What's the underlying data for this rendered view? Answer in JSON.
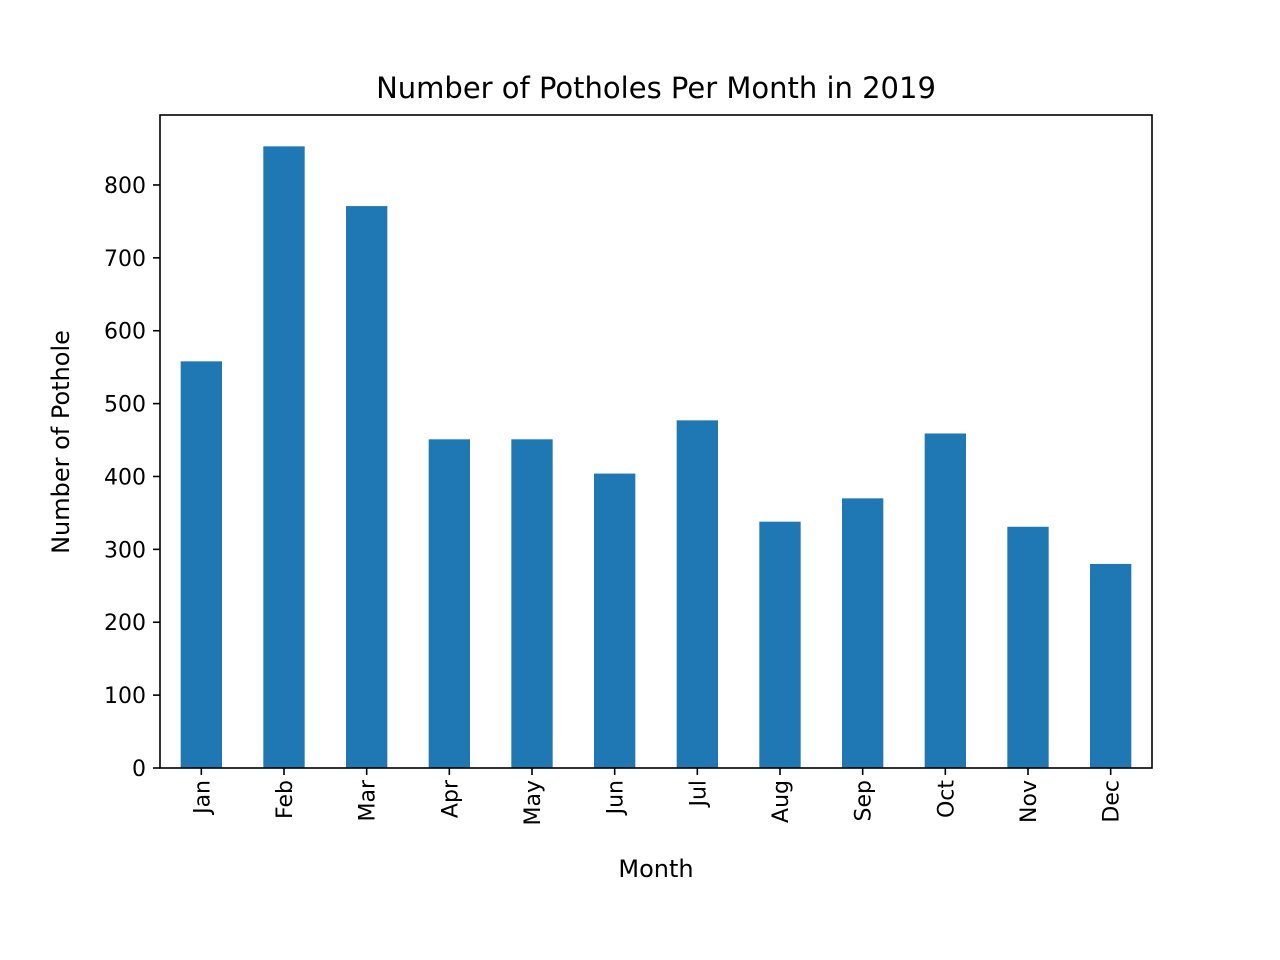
{
  "chart_data": {
    "type": "bar",
    "title": "Number of Potholes Per Month in 2019",
    "xlabel": "Month",
    "ylabel": "Number of Pothole",
    "categories": [
      "Jan",
      "Feb",
      "Mar",
      "Apr",
      "May",
      "Jun",
      "Jul",
      "Aug",
      "Sep",
      "Oct",
      "Nov",
      "Dec"
    ],
    "values": [
      558,
      853,
      771,
      451,
      451,
      404,
      477,
      338,
      370,
      459,
      331,
      280
    ],
    "ylim": [
      0,
      896
    ],
    "yticks": [
      0,
      100,
      200,
      300,
      400,
      500,
      600,
      700,
      800
    ],
    "bar_color": "#1f77b4",
    "grid": false,
    "legend": "none"
  }
}
